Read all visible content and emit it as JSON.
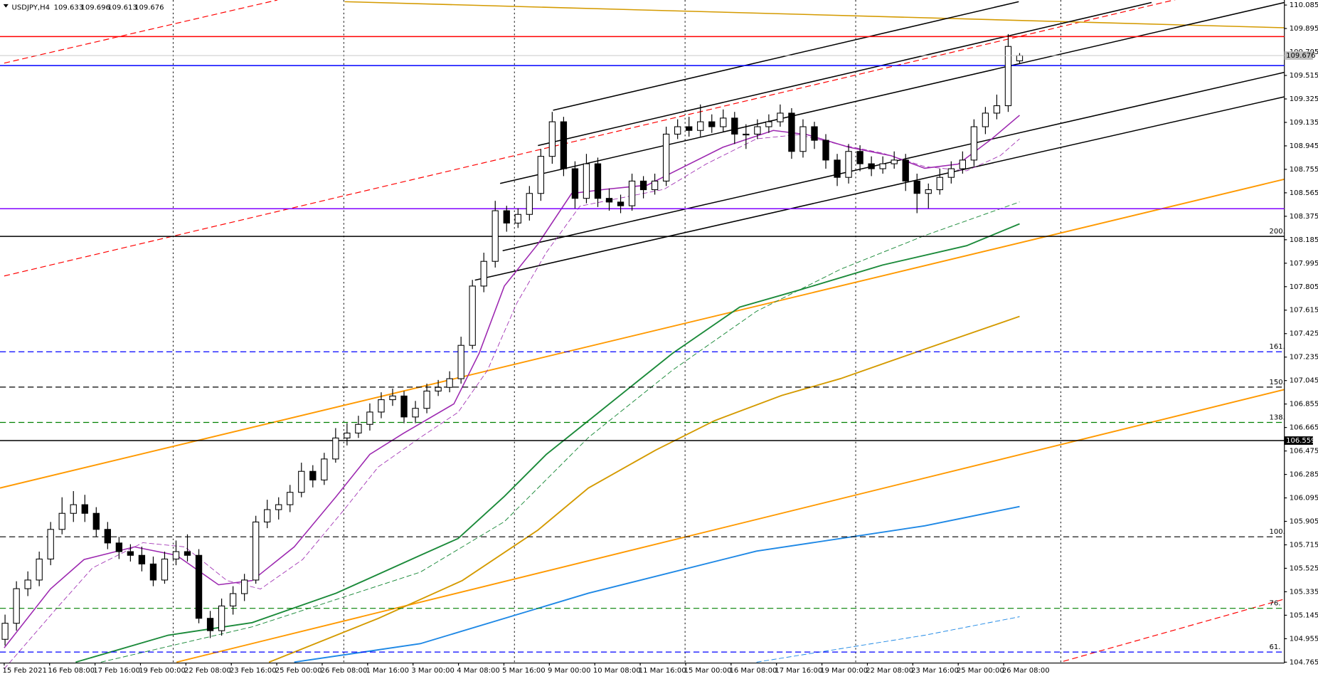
{
  "chart_data": {
    "type": "candlestick",
    "title": "USDJPY,H4",
    "ylim": [
      104.765,
      110.085
    ],
    "yticks": [
      110.085,
      109.895,
      109.705,
      109.515,
      109.325,
      109.135,
      108.945,
      108.755,
      108.565,
      108.375,
      108.185,
      107.995,
      107.805,
      107.615,
      107.425,
      107.235,
      107.045,
      106.855,
      106.665,
      106.475,
      106.285,
      106.095,
      105.905,
      105.715,
      105.525,
      105.335,
      105.145,
      104.955,
      104.765
    ],
    "x_labels": [
      "15 Feb 2021",
      "16 Feb 08:00",
      "17 Feb 16:00",
      "19 Feb 00:00",
      "22 Feb 08:00",
      "23 Feb 16:00",
      "25 Feb 00:00",
      "26 Feb 08:00",
      "1 Mar 16:00",
      "3 Mar 00:00",
      "4 Mar 08:00",
      "5 Mar 16:00",
      "9 Mar 00:00",
      "10 Mar 08:00",
      "11 Mar 16:00",
      "15 Mar 00:00",
      "16 Mar 08:00",
      "17 Mar 16:00",
      "19 Mar 00:00",
      "22 Mar 08:00",
      "23 Mar 16:00",
      "25 Mar 00:00",
      "26 Mar 08:00"
    ],
    "bull_color": "#ffffff",
    "bear_color": "#000000",
    "ohlc": [
      [
        104.95,
        105.15,
        104.9,
        105.08
      ],
      [
        105.08,
        105.42,
        105.02,
        105.36
      ],
      [
        105.36,
        105.5,
        105.3,
        105.43
      ],
      [
        105.43,
        105.66,
        105.38,
        105.6
      ],
      [
        105.6,
        105.9,
        105.55,
        105.84
      ],
      [
        105.84,
        106.1,
        105.8,
        105.97
      ],
      [
        105.97,
        106.15,
        105.9,
        106.04
      ],
      [
        106.04,
        106.12,
        105.9,
        105.97
      ],
      [
        105.97,
        106.02,
        105.78,
        105.84
      ],
      [
        105.84,
        105.9,
        105.68,
        105.73
      ],
      [
        105.73,
        105.78,
        105.6,
        105.66
      ],
      [
        105.66,
        105.72,
        105.58,
        105.63
      ],
      [
        105.63,
        105.7,
        105.5,
        105.56
      ],
      [
        105.56,
        105.62,
        105.38,
        105.43
      ],
      [
        105.43,
        105.66,
        105.4,
        105.6
      ],
      [
        105.6,
        105.75,
        105.55,
        105.66
      ],
      [
        105.66,
        105.8,
        105.58,
        105.63
      ],
      [
        105.63,
        105.68,
        105.08,
        105.12
      ],
      [
        105.12,
        105.18,
        104.96,
        105.02
      ],
      [
        105.02,
        105.28,
        104.98,
        105.22
      ],
      [
        105.22,
        105.38,
        105.15,
        105.32
      ],
      [
        105.32,
        105.48,
        105.26,
        105.43
      ],
      [
        105.43,
        105.95,
        105.4,
        105.9
      ],
      [
        105.9,
        106.08,
        105.85,
        106
      ],
      [
        106,
        106.1,
        105.92,
        106.04
      ],
      [
        106.04,
        106.2,
        105.98,
        106.14
      ],
      [
        106.14,
        106.38,
        106.1,
        106.31
      ],
      [
        106.31,
        106.36,
        106.18,
        106.24
      ],
      [
        106.24,
        106.46,
        106.2,
        106.41
      ],
      [
        106.41,
        106.66,
        106.38,
        106.58
      ],
      [
        106.58,
        106.7,
        106.52,
        106.62
      ],
      [
        106.62,
        106.76,
        106.58,
        106.69
      ],
      [
        106.69,
        106.86,
        106.64,
        106.79
      ],
      [
        106.79,
        106.95,
        106.74,
        106.89
      ],
      [
        106.89,
        106.98,
        106.84,
        106.92
      ],
      [
        106.92,
        106.96,
        106.7,
        106.75
      ],
      [
        106.75,
        106.88,
        106.7,
        106.82
      ],
      [
        106.82,
        107.02,
        106.78,
        106.96
      ],
      [
        106.96,
        107.05,
        106.92,
        106.99
      ],
      [
        106.99,
        107.12,
        106.95,
        107.06
      ],
      [
        107.06,
        107.4,
        107.02,
        107.33
      ],
      [
        107.33,
        107.86,
        107.3,
        107.81
      ],
      [
        107.81,
        108.08,
        107.76,
        108.01
      ],
      [
        108.01,
        108.5,
        107.96,
        108.42
      ],
      [
        108.42,
        108.46,
        108.25,
        108.32
      ],
      [
        108.32,
        108.44,
        108.28,
        108.39
      ],
      [
        108.39,
        108.62,
        108.34,
        108.56
      ],
      [
        108.56,
        108.92,
        108.5,
        108.86
      ],
      [
        108.86,
        109.22,
        108.8,
        109.14
      ],
      [
        109.14,
        109.18,
        108.7,
        108.76
      ],
      [
        108.76,
        108.82,
        108.44,
        108.52
      ],
      [
        108.52,
        108.88,
        108.48,
        108.8
      ],
      [
        108.8,
        108.85,
        108.45,
        108.52
      ],
      [
        108.52,
        108.6,
        108.42,
        108.49
      ],
      [
        108.49,
        108.55,
        108.4,
        108.46
      ],
      [
        108.46,
        108.72,
        108.42,
        108.66
      ],
      [
        108.66,
        108.7,
        108.52,
        108.59
      ],
      [
        108.59,
        108.72,
        108.55,
        108.66
      ],
      [
        108.66,
        109.1,
        108.62,
        109.04
      ],
      [
        109.04,
        109.16,
        109,
        109.1
      ],
      [
        109.1,
        109.18,
        109.02,
        109.07
      ],
      [
        109.07,
        109.28,
        109.02,
        109.14
      ],
      [
        109.14,
        109.2,
        109.05,
        109.1
      ],
      [
        109.1,
        109.24,
        109.06,
        109.17
      ],
      [
        109.17,
        109.22,
        108.96,
        109.04
      ],
      [
        109.04,
        109.12,
        108.92,
        109.04
      ],
      [
        109.04,
        109.16,
        109,
        109.1
      ],
      [
        109.1,
        109.2,
        109.05,
        109.14
      ],
      [
        109.14,
        109.28,
        109.1,
        109.21
      ],
      [
        109.21,
        109.25,
        108.84,
        108.9
      ],
      [
        108.9,
        109.16,
        108.85,
        109.1
      ],
      [
        109.1,
        109.14,
        108.92,
        108.99
      ],
      [
        108.99,
        109.04,
        108.76,
        108.83
      ],
      [
        108.83,
        108.88,
        108.62,
        108.69
      ],
      [
        108.69,
        108.96,
        108.64,
        108.9
      ],
      [
        108.9,
        108.95,
        108.74,
        108.8
      ],
      [
        108.8,
        108.86,
        108.7,
        108.76
      ],
      [
        108.76,
        108.86,
        108.72,
        108.8
      ],
      [
        108.8,
        108.9,
        108.76,
        108.83
      ],
      [
        108.83,
        108.88,
        108.58,
        108.66
      ],
      [
        108.66,
        108.72,
        108.4,
        108.56
      ],
      [
        108.56,
        108.64,
        108.44,
        108.59
      ],
      [
        108.59,
        108.76,
        108.55,
        108.69
      ],
      [
        108.69,
        108.82,
        108.64,
        108.76
      ],
      [
        108.76,
        108.9,
        108.72,
        108.83
      ],
      [
        108.83,
        109.16,
        108.78,
        109.1
      ],
      [
        109.1,
        109.26,
        109.04,
        109.21
      ],
      [
        109.21,
        109.36,
        109.16,
        109.27
      ],
      [
        109.27,
        109.85,
        109.22,
        109.75
      ],
      [
        109.633,
        109.696,
        109.613,
        109.676
      ]
    ],
    "levels": [
      {
        "value": 109.83,
        "color": "#ff0000",
        "dashed": false
      },
      {
        "value": 109.595,
        "color": "#0000ff",
        "dashed": false
      },
      {
        "value": 108.436,
        "color": "#8000ff",
        "dashed": false
      },
      {
        "value": 108.212,
        "color": "#000000",
        "dashed": false,
        "label": "200."
      },
      {
        "value": 107.278,
        "color": "#0000ff",
        "dashed": true,
        "label": "161."
      },
      {
        "value": 106.992,
        "color": "#000000",
        "dashed": true,
        "label": "150."
      },
      {
        "value": 106.706,
        "color": "#008000",
        "dashed": true,
        "label": "138."
      },
      {
        "value": 106.559,
        "color": "#000000",
        "dashed": false,
        "price_box": true
      },
      {
        "value": 105.78,
        "color": "#000000",
        "dashed": true,
        "label": "100."
      },
      {
        "value": 105.201,
        "color": "#008000",
        "dashed": true,
        "label": "76."
      },
      {
        "value": 104.847,
        "color": "#0000ff",
        "dashed": true,
        "label": "61."
      }
    ]
  }
}
